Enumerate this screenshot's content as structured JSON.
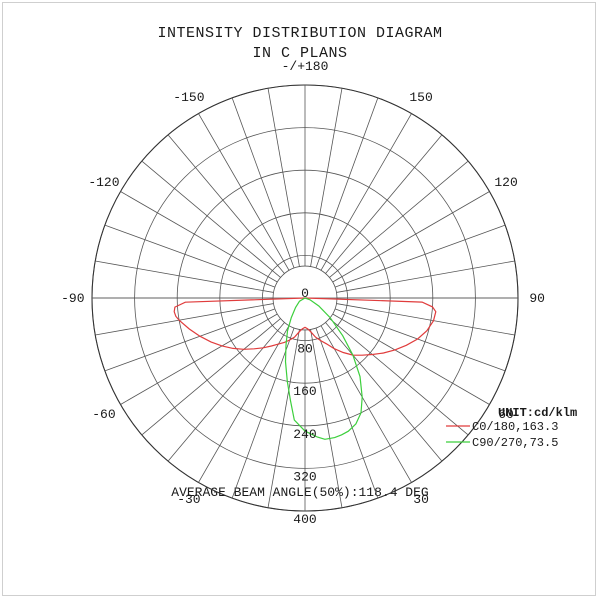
{
  "title_line1": "INTENSITY DISTRIBUTION DIAGRAM",
  "title_line2": "IN C PLANS",
  "beam_angle_text": "AVERAGE BEAM ANGLE(50%):118.4 DEG",
  "chart_data": {
    "type": "polar",
    "angle_labels": [
      {
        "angle": 180,
        "text": "-/+180"
      },
      {
        "angle": 150,
        "text": "150"
      },
      {
        "angle": 120,
        "text": "120"
      },
      {
        "angle": 90,
        "text": "90"
      },
      {
        "angle": 60,
        "text": "60"
      },
      {
        "angle": 30,
        "text": "30"
      },
      {
        "angle": -30,
        "text": "-30"
      },
      {
        "angle": -60,
        "text": "-60"
      },
      {
        "angle": -90,
        "text": "-90"
      },
      {
        "angle": -120,
        "text": "-120"
      },
      {
        "angle": -150,
        "text": "-150"
      }
    ],
    "radial_ticks": [
      0,
      80,
      160,
      240,
      320,
      400
    ],
    "radial_tick_labels": [
      "0",
      "80",
      "160",
      "240",
      "320",
      "400"
    ],
    "r_max": 400,
    "angle_step_deg": 10,
    "unit_label": "UNIT:cd/klm",
    "series": [
      {
        "name": "C0/180,163.3",
        "color": "#e03c3c",
        "points": [
          [
            -90,
            0
          ],
          [
            -88,
            225
          ],
          [
            -86,
            245
          ],
          [
            -84,
            247
          ],
          [
            -82,
            245
          ],
          [
            -80,
            240
          ],
          [
            -75,
            225
          ],
          [
            -70,
            210
          ],
          [
            -65,
            195
          ],
          [
            -60,
            180
          ],
          [
            -55,
            165
          ],
          [
            -50,
            150
          ],
          [
            -45,
            135
          ],
          [
            -40,
            122
          ],
          [
            -35,
            110
          ],
          [
            -30,
            100
          ],
          [
            -25,
            92
          ],
          [
            -20,
            84
          ],
          [
            -15,
            76
          ],
          [
            -10,
            65
          ],
          [
            -5,
            58
          ],
          [
            0,
            55
          ],
          [
            5,
            58
          ],
          [
            10,
            65
          ],
          [
            15,
            76
          ],
          [
            20,
            85
          ],
          [
            25,
            95
          ],
          [
            30,
            110
          ],
          [
            35,
            125
          ],
          [
            40,
            140
          ],
          [
            45,
            152
          ],
          [
            50,
            165
          ],
          [
            55,
            180
          ],
          [
            60,
            195
          ],
          [
            65,
            210
          ],
          [
            70,
            225
          ],
          [
            75,
            237
          ],
          [
            80,
            245
          ],
          [
            84,
            247
          ],
          [
            86,
            240
          ],
          [
            88,
            220
          ],
          [
            90,
            0
          ]
        ]
      },
      {
        "name": "C90/270,73.5",
        "color": "#3ccf3c",
        "points": [
          [
            -90,
            0
          ],
          [
            -60,
            12
          ],
          [
            -45,
            25
          ],
          [
            -35,
            45
          ],
          [
            -28,
            70
          ],
          [
            -22,
            95
          ],
          [
            -17,
            125
          ],
          [
            -12,
            160
          ],
          [
            -8,
            195
          ],
          [
            -5,
            230
          ],
          [
            0,
            250
          ],
          [
            5,
            262
          ],
          [
            8,
            268
          ],
          [
            12,
            268
          ],
          [
            15,
            266
          ],
          [
            18,
            263
          ],
          [
            22,
            255
          ],
          [
            26,
            240
          ],
          [
            30,
            215
          ],
          [
            35,
            180
          ],
          [
            40,
            140
          ],
          [
            45,
            100
          ],
          [
            52,
            60
          ],
          [
            60,
            30
          ],
          [
            70,
            10
          ],
          [
            90,
            0
          ]
        ]
      }
    ]
  }
}
